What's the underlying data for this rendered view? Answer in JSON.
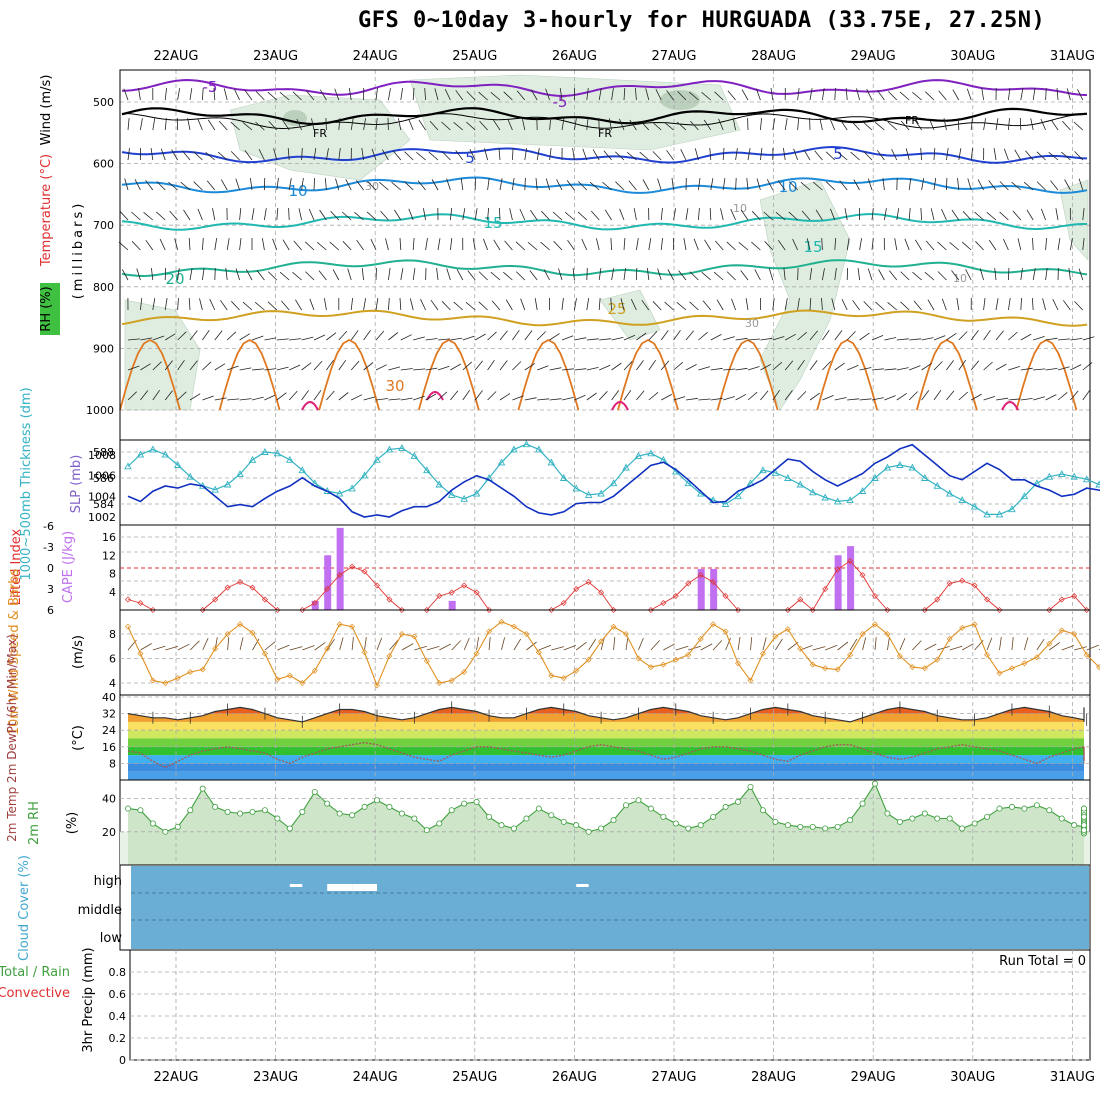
{
  "title": "GFS 0~10day 3-hourly for HURGUADA (33.75E, 27.25N)",
  "dates": [
    "22AUG",
    "23AUG",
    "24AUG",
    "25AUG",
    "26AUG",
    "27AUG",
    "28AUG",
    "29AUG",
    "30AUG",
    "31AUG"
  ],
  "panels": {
    "upper": {
      "ylabel_units": "(millibars)",
      "ylabel_wind": "Wind (m/s)",
      "ylabel_temp": "Temperature (°C)",
      "ylabel_rh": "RH (%)",
      "ticks": [
        "500",
        "600",
        "700",
        "800",
        "900",
        "1000"
      ],
      "contour_labels": [
        "-5",
        "-5",
        "FR",
        "FR",
        "FR",
        "5",
        "5",
        "10",
        "10",
        "15",
        "15",
        "20",
        "25",
        "30",
        "30",
        "10",
        "30",
        "10"
      ]
    },
    "thickness": {
      "ylabel_left": "1000~500mb Thickness (dm)",
      "ylabel_right": "SLP (mb)",
      "ticks_left": [
        "588",
        "586",
        "584"
      ],
      "ticks_right": [
        "1008",
        "1006",
        "1004",
        "1002"
      ]
    },
    "cape": {
      "ylabel_left": "Lifted Index",
      "ylabel_right": "CAPE (J/kg)",
      "ticks_left": [
        "-6",
        "-3",
        "0",
        "3",
        "6"
      ],
      "ticks_right": [
        "16",
        "12",
        "8",
        "4"
      ]
    },
    "wind10": {
      "ylabel": "10m Wind Speed & Barbs",
      "units": "(m/s)",
      "ticks": [
        "8",
        "6",
        "4"
      ]
    },
    "temp2m": {
      "ylabel": "2m Temp 2m DewPt (6hr Min/Max)",
      "units": "(°C)",
      "ticks": [
        "40",
        "32",
        "24",
        "16",
        "8"
      ]
    },
    "rh2m": {
      "ylabel": "2m RH",
      "units": "(%)",
      "ticks": [
        "40",
        "20"
      ]
    },
    "cloud": {
      "ylabel": "Cloud Cover (%)",
      "levels": [
        "high",
        "middle",
        "low"
      ]
    },
    "precip": {
      "ylabel_total": "Total / Rain",
      "ylabel_conv": "Convective",
      "ylabel_units": "3hr Precip (mm)",
      "ticks": [
        "0.8",
        "0.6",
        "0.4",
        "0.2",
        "0"
      ],
      "run_total": "Run Total = 0"
    }
  },
  "colors": {
    "thickness": "#33b3c3",
    "slp": "#1030c0",
    "lifted_index": "#e03030",
    "cape": "#c070f0",
    "wind10": "#e09020",
    "rh2m": "#40a040",
    "cloud": "#6aaed6",
    "temp_line": "#333333",
    "dewpt_line": "#a05a5a"
  },
  "chart_data": [
    {
      "type": "line",
      "title": "1000~500mb Thickness (dm) / SLP (mb)",
      "x_unit": "3-hourly steps from 21AUG 12Z",
      "series": [
        {
          "name": "1000~500mb Thickness (dm)",
          "axis": "left",
          "ylim": [
            582.5,
            588.5
          ],
          "values": [
            586.9,
            587.8,
            588.2,
            587.8,
            587.0,
            586.1,
            585.4,
            585.1,
            585.5,
            586.3,
            587.4,
            588.0,
            587.9,
            587.4,
            586.6,
            585.6,
            585.0,
            584.8,
            585.2,
            586.2,
            587.4,
            588.2,
            588.3,
            587.7,
            586.6,
            585.5,
            584.7,
            584.4,
            584.8,
            586.0,
            587.2,
            588.2,
            588.6,
            588.2,
            587.2,
            586.0,
            585.2,
            584.7,
            584.8,
            585.6,
            586.8,
            587.7,
            587.9,
            587.4,
            586.5,
            585.6,
            584.8,
            584.3,
            584.0,
            584.6,
            585.6,
            586.6,
            586.4,
            586.0,
            585.5,
            584.9,
            584.5,
            584.2,
            584.3,
            585.0,
            586.0,
            586.8,
            587.0,
            586.8,
            586.0,
            585.4,
            584.8,
            584.3,
            583.8,
            583.2,
            583.2,
            583.6,
            584.6,
            585.6,
            586.1,
            586.3,
            586.1,
            585.9,
            585.5,
            585.2,
            584.7,
            584.5,
            583.8,
            583.1,
            583.2,
            583.6,
            584.0,
            584.4,
            584.3,
            584.3,
            584.5,
            585.2,
            585.8,
            586.5,
            587.0,
            587.1,
            586.7,
            586.1,
            585.4,
            584.9,
            584.7,
            585.2,
            585.4,
            585.0,
            584.7,
            584.5,
            584.5,
            584.0
          ]
        },
        {
          "name": "SLP (mb)",
          "axis": "right",
          "ylim": [
            1001.5,
            1009
          ],
          "values": [
            1004.0,
            1003.5,
            1004.5,
            1005.0,
            1004.8,
            1005.2,
            1005.0,
            1004.0,
            1003.0,
            1003.2,
            1003.0,
            1003.8,
            1004.5,
            1005.0,
            1005.8,
            1005.0,
            1004.5,
            1003.8,
            1002.5,
            1002.0,
            1002.2,
            1002.0,
            1002.6,
            1003.0,
            1003.0,
            1003.5,
            1004.6,
            1005.4,
            1006.0,
            1005.6,
            1004.8,
            1004.0,
            1003.0,
            1002.4,
            1002.2,
            1002.5,
            1003.3,
            1003.4,
            1003.4,
            1004.0,
            1005.0,
            1006.0,
            1007.0,
            1007.3,
            1006.6,
            1005.6,
            1004.5,
            1003.4,
            1003.5,
            1004.5,
            1005.0,
            1005.6,
            1006.6,
            1007.6,
            1007.4,
            1006.4,
            1005.6,
            1005.0,
            1005.6,
            1006.2,
            1007.2,
            1007.8,
            1008.6,
            1009.0,
            1008.0,
            1007.0,
            1006.0,
            1005.6,
            1006.4,
            1007.2,
            1006.6,
            1005.6,
            1005.6,
            1005.0,
            1004.6,
            1004.0,
            1004.2,
            1004.8,
            1004.6,
            1004.2,
            1003.8,
            1003.6,
            1004.2,
            1005.2,
            1006.0,
            1006.8,
            1007.6,
            1007.0,
            1006.2,
            1005.4,
            1005.4,
            1006.0,
            1006.6,
            1006.6,
            1007.0,
            1007.6,
            1008.2,
            1008.6,
            1008.0,
            1006.8,
            1005.8,
            1005.2,
            1005.0,
            1005.0,
            1005.4,
            1006.0
          ]
        }
      ]
    },
    {
      "type": "bar",
      "title": "Lifted Index / CAPE (J/kg)",
      "x_unit": "3-hourly steps from 21AUG 12Z",
      "cape_bars": [
        {
          "step": 15,
          "value": 2
        },
        {
          "step": 16,
          "value": 12
        },
        {
          "step": 17,
          "value": 18
        },
        {
          "step": 26,
          "value": 2
        },
        {
          "step": 46,
          "value": 9
        },
        {
          "step": 47,
          "value": 9
        },
        {
          "step": 57,
          "value": 12
        },
        {
          "step": 58,
          "value": 14
        }
      ],
      "lifted_index_segments": [
        {
          "start": 0,
          "values": [
            4.5,
            5.0,
            6
          ]
        },
        {
          "start": 6,
          "values": [
            6,
            4.5,
            2.8,
            2.0,
            2.8,
            4.5,
            6
          ]
        },
        {
          "start": 14,
          "values": [
            6,
            5.0,
            3.0,
            1.0,
            -0.2,
            0.5,
            2.5,
            4.5,
            6
          ]
        },
        {
          "start": 24,
          "values": [
            6,
            4.0,
            3.5,
            2.5,
            3.5,
            6
          ]
        },
        {
          "start": 34,
          "values": [
            6,
            5.0,
            3.0,
            2.0,
            3.5,
            6
          ]
        },
        {
          "start": 42,
          "values": [
            6,
            5.0,
            4.0,
            2.2,
            1.0,
            2.0,
            4.0,
            6
          ]
        },
        {
          "start": 53,
          "values": [
            6,
            4.5,
            6,
            3.0,
            0.2,
            -1.0,
            1.0,
            4.0,
            6
          ]
        },
        {
          "start": 64,
          "values": [
            6,
            4.5,
            2.2,
            1.8,
            2.5,
            4.5,
            6
          ]
        },
        {
          "start": 74,
          "values": [
            6,
            4.5,
            4.0,
            6
          ]
        },
        {
          "start": 84,
          "values": [
            6,
            5.0,
            6
          ]
        }
      ],
      "li_zero_line": 0
    },
    {
      "type": "line",
      "title": "10m Wind Speed (m/s)",
      "x_unit": "3-hourly steps from 21AUG 12Z",
      "ylim": [
        3.5,
        9
      ],
      "series": [
        {
          "name": "10m Wind Speed",
          "values": [
            8.6,
            6.4,
            4.2,
            4.0,
            4.4,
            4.9,
            5.1,
            6.8,
            8.0,
            8.8,
            8.1,
            6.4,
            4.3,
            4.6,
            4.0,
            5.0,
            6.8,
            8.8,
            8.6,
            6.5,
            3.8,
            6.2,
            8.0,
            7.8,
            5.8,
            4.0,
            4.2,
            4.9,
            6.4,
            8.2,
            9.0,
            8.6,
            8.0,
            6.5,
            4.6,
            4.4,
            5.0,
            5.9,
            7.4,
            8.6,
            8.0,
            6.0,
            5.3,
            5.5,
            5.9,
            6.3,
            7.6,
            8.8,
            8.2,
            5.6,
            4.2,
            6.4,
            7.8,
            8.4,
            6.8,
            5.5,
            5.2,
            5.1,
            6.3,
            8.0,
            8.8,
            8.0,
            6.2,
            5.3,
            5.2,
            5.9,
            7.6,
            8.5,
            8.8,
            6.3,
            4.8,
            5.2,
            5.6,
            6.1,
            7.2,
            8.3,
            8.0,
            6.3,
            5.3,
            5.0,
            4.3,
            5.4,
            5.9,
            6.8,
            8.3,
            8.6,
            7.8,
            6.6,
            5.2,
            5.2,
            5.6,
            5.6,
            5.4,
            5.4,
            5.9
          ]
        }
      ]
    },
    {
      "type": "area",
      "title": "2m Temp / 2m DewPt (°C)",
      "x_unit": "3-hourly steps from 21AUG 12Z",
      "ylim": [
        0,
        40
      ],
      "series": [
        {
          "name": "2m Temp",
          "values": [
            32,
            31,
            30,
            30,
            29,
            30,
            31,
            33,
            34,
            35,
            34,
            32,
            30,
            29,
            28,
            30,
            32,
            34,
            34,
            33,
            31,
            30,
            29,
            30,
            32,
            34,
            35,
            34,
            33,
            31,
            30,
            30,
            32,
            34,
            35,
            34,
            33,
            31,
            30,
            29,
            30,
            32,
            34,
            35,
            34,
            33,
            31,
            30,
            29,
            30,
            32,
            34,
            35,
            34,
            33,
            31,
            30,
            29,
            28,
            30,
            32,
            34,
            35,
            34,
            33,
            31,
            30,
            29,
            29,
            30,
            32,
            34,
            35,
            34,
            33,
            31,
            30,
            29,
            28,
            30,
            32,
            34,
            35,
            34,
            33,
            31,
            30,
            29,
            28,
            30,
            32,
            34,
            35,
            34,
            32,
            30,
            29,
            31
          ]
        },
        {
          "name": "2m DewPt",
          "values": [
            14,
            13,
            9,
            6,
            9,
            12,
            14,
            15,
            16,
            15,
            14,
            13,
            10,
            8,
            11,
            13,
            15,
            16,
            17,
            18,
            17,
            15,
            13,
            11,
            10,
            9,
            12,
            14,
            16,
            16,
            15,
            14,
            13,
            12,
            11,
            12,
            14,
            16,
            17,
            16,
            15,
            14,
            12,
            10,
            11,
            13,
            15,
            16,
            16,
            15,
            14,
            12,
            10,
            9,
            12,
            14,
            16,
            17,
            17,
            15,
            13,
            11,
            10,
            11,
            13,
            15,
            16,
            17,
            16,
            15,
            14,
            12,
            10,
            8,
            11,
            13,
            15,
            16,
            16,
            15,
            14,
            12,
            9,
            8,
            11,
            13,
            15,
            16,
            16,
            15,
            14,
            12,
            9,
            11,
            14,
            15,
            13,
            12
          ]
        }
      ]
    },
    {
      "type": "area",
      "title": "2m RH (%)",
      "x_unit": "3-hourly steps from 21AUG 12Z",
      "ylim": [
        0,
        50
      ],
      "series": [
        {
          "name": "2m RH",
          "values": [
            34,
            33,
            25,
            20,
            23,
            33,
            46,
            35,
            32,
            31,
            32,
            33,
            28,
            22,
            32,
            44,
            37,
            31,
            30,
            35,
            39,
            35,
            31,
            28,
            21,
            25,
            33,
            37,
            38,
            29,
            24,
            22,
            28,
            34,
            30,
            26,
            24,
            20,
            22,
            27,
            36,
            39,
            34,
            29,
            25,
            22,
            24,
            29,
            35,
            38,
            47,
            33,
            26,
            24,
            23,
            23,
            22,
            23,
            27,
            37,
            49,
            31,
            26,
            28,
            31,
            28,
            28,
            22,
            25,
            29,
            34,
            35,
            34,
            36,
            33,
            28,
            24,
            23,
            22,
            25,
            32,
            33,
            31,
            27,
            26,
            22,
            19,
            20,
            24,
            28,
            34,
            32,
            30,
            28,
            25,
            21,
            24,
            34,
            29
          ]
        }
      ]
    },
    {
      "type": "table",
      "title": "Cloud Cover (%)",
      "note": "Cloud cover blocks at high level",
      "high_blocks": [
        {
          "step_start": 13,
          "step_end": 14
        },
        {
          "step_start": 16,
          "step_end": 18
        },
        {
          "step_start": 18,
          "step_end": 20
        },
        {
          "step_start": 36,
          "step_end": 37
        }
      ]
    },
    {
      "type": "bar",
      "title": "3hr Precip (mm)",
      "ylim": [
        0,
        1
      ],
      "values": [],
      "run_total": "Run Total = 0"
    }
  ]
}
